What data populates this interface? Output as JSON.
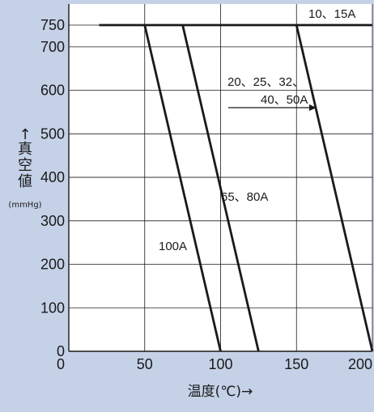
{
  "chart_data": {
    "type": "line",
    "xlabel": "温度(℃)→",
    "ylabel": "真空値",
    "ylabel_unit": "(mmHg)",
    "ylabel_arrow": "↑",
    "xlim": [
      0,
      200
    ],
    "ylim": [
      0,
      800
    ],
    "x_ticks": [
      50,
      100,
      150,
      200
    ],
    "y_ticks": [
      0,
      100,
      200,
      300,
      400,
      500,
      600,
      700,
      750
    ],
    "grid": true,
    "series": [
      {
        "name": "10、15A",
        "x": [
          20,
          200
        ],
        "y": [
          750,
          750
        ]
      },
      {
        "name": "100A",
        "x": [
          50,
          100
        ],
        "y": [
          750,
          0
        ]
      },
      {
        "name": "65、80A",
        "x": [
          75,
          125
        ],
        "y": [
          750,
          0
        ]
      },
      {
        "name": "20、25、32、40、50A",
        "x": [
          150,
          200
        ],
        "y": [
          750,
          0
        ]
      }
    ],
    "annotations": [
      {
        "key": "a1",
        "text": "10、15A"
      },
      {
        "key": "a2",
        "text": "20、25、32、"
      },
      {
        "key": "a3",
        "text": "40、50A"
      },
      {
        "key": "a4",
        "text": "65、80A"
      },
      {
        "key": "a5",
        "text": "100A"
      }
    ]
  }
}
